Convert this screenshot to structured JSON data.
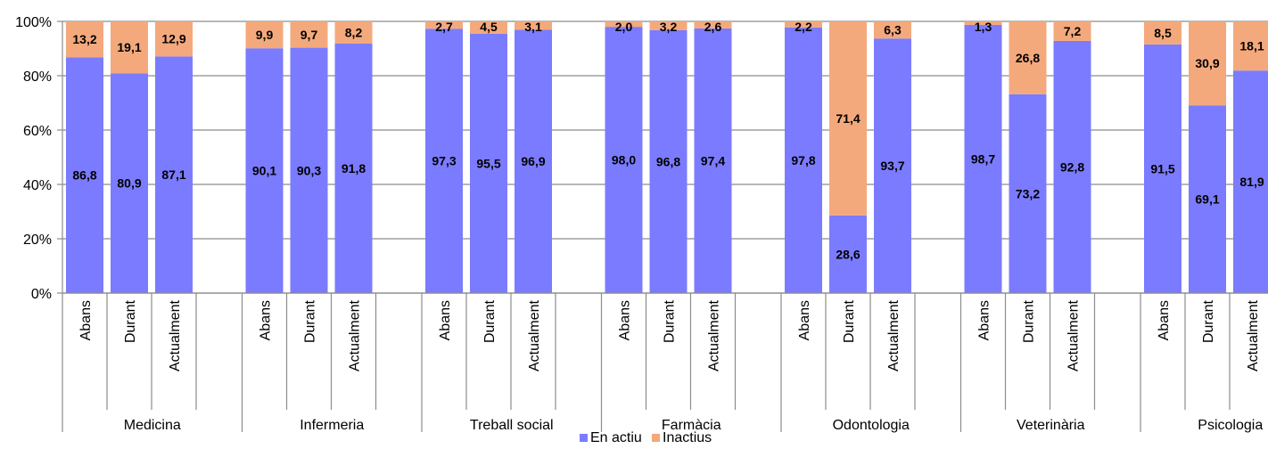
{
  "chart_data": {
    "type": "bar",
    "stacked": true,
    "percent_stacked": true,
    "title": "",
    "xlabel": "",
    "ylabel": "",
    "ylim": [
      0,
      100
    ],
    "y_ticks": [
      "0%",
      "20%",
      "40%",
      "60%",
      "80%",
      "100%"
    ],
    "grid": "horizontal",
    "legend_position": "bottom",
    "groups": [
      {
        "name": "Medicina",
        "categories": [
          "Abans",
          "Durant",
          "Actualment"
        ]
      },
      {
        "name": "Infermeria",
        "categories": [
          "Abans",
          "Durant",
          "Actualment"
        ]
      },
      {
        "name": "Treball social",
        "categories": [
          "Abans",
          "Durant",
          "Actualment"
        ]
      },
      {
        "name": "Farmàcia",
        "categories": [
          "Abans",
          "Durant",
          "Actualment"
        ]
      },
      {
        "name": "Odontologia",
        "categories": [
          "Abans",
          "Durant",
          "Actualment"
        ]
      },
      {
        "name": "Veterinària",
        "categories": [
          "Abans",
          "Durant",
          "Actualment"
        ]
      },
      {
        "name": "Psicologia",
        "categories": [
          "Abans",
          "Durant",
          "Actualment"
        ]
      }
    ],
    "series": [
      {
        "name": "En actiu",
        "color": "#7b7bff",
        "values": [
          86.8,
          80.9,
          87.1,
          90.1,
          90.3,
          91.8,
          97.3,
          95.5,
          96.9,
          98.0,
          96.8,
          97.4,
          97.8,
          28.6,
          93.7,
          98.7,
          73.2,
          92.8,
          91.5,
          69.1,
          81.9
        ],
        "labels": [
          "86,8",
          "80,9",
          "87,1",
          "90,1",
          "90,3",
          "91,8",
          "97,3",
          "95,5",
          "96,9",
          "98,0",
          "96,8",
          "97,4",
          "97,8",
          "28,6",
          "93,7",
          "98,7",
          "73,2",
          "92,8",
          "91,5",
          "69,1",
          "81,9"
        ]
      },
      {
        "name": "Inactius",
        "color": "#f4a97c",
        "values": [
          13.2,
          19.1,
          12.9,
          9.9,
          9.7,
          8.2,
          2.7,
          4.5,
          3.1,
          2.0,
          3.2,
          2.6,
          2.2,
          71.4,
          6.3,
          1.3,
          26.8,
          7.2,
          8.5,
          30.9,
          18.1
        ],
        "labels": [
          "13,2",
          "19,1",
          "12,9",
          "9,9",
          "9,7",
          "8,2",
          "2,7",
          "4,5",
          "3,1",
          "2,0",
          "3,2",
          "2,6",
          "2,2",
          "71,4",
          "6,3",
          "1,3",
          "26,8",
          "7,2",
          "8,5",
          "30,9",
          "18,1"
        ]
      }
    ]
  }
}
